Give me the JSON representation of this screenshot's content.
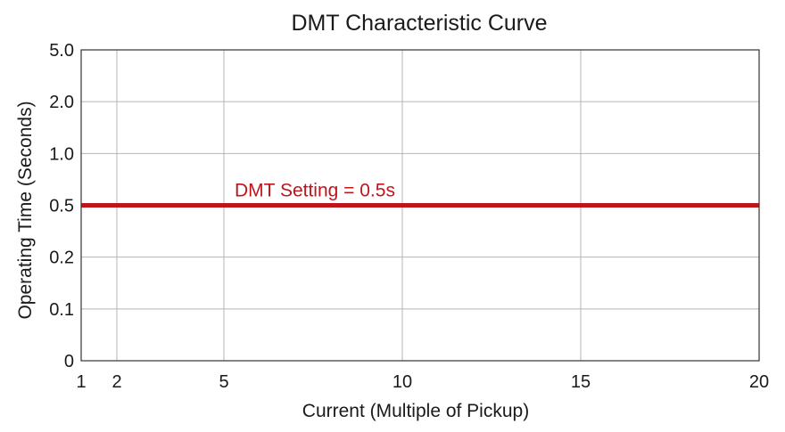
{
  "chart_data": {
    "type": "line",
    "title": "DMT Characteristic Curve",
    "xlabel": "Current (Multiple of Pickup)",
    "ylabel": "Operating Time (Seconds)",
    "x_ticks": [
      "1",
      "2",
      "5",
      "10",
      "15",
      "20"
    ],
    "y_ticks": [
      "0",
      "0.1",
      "0.2",
      "0.5",
      "1.0",
      "2.0",
      "5.0"
    ],
    "xlim": [
      1,
      20
    ],
    "grid": true,
    "series": [
      {
        "color": "#c0141c",
        "x": [
          1,
          20
        ],
        "y": [
          0.5,
          0.5
        ]
      }
    ],
    "annotations": [
      {
        "text": "DMT Setting = 0.5s",
        "x": 5.3,
        "y": 0.5
      }
    ]
  }
}
